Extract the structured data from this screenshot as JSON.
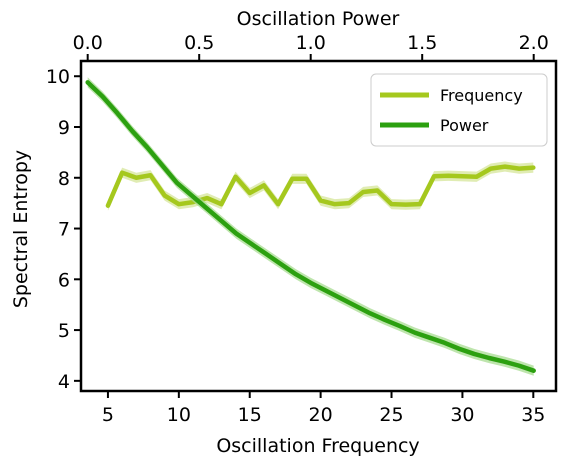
{
  "chart_data": {
    "type": "line",
    "xlabel": "Oscillation Frequency",
    "ylabel": "Spectral Entropy",
    "top_xlabel": "Oscillation Power",
    "xlim": [
      3.1,
      36.6
    ],
    "ylim": [
      3.8,
      10.3
    ],
    "top_xlim": [
      -0.03,
      2.1
    ],
    "x_ticks": [
      5,
      10,
      15,
      20,
      25,
      30,
      35
    ],
    "x_tick_labels": [
      "5",
      "10",
      "15",
      "20",
      "25",
      "30",
      "35"
    ],
    "y_ticks": [
      4,
      5,
      6,
      7,
      8,
      9,
      10
    ],
    "y_tick_labels": [
      "4",
      "5",
      "6",
      "7",
      "8",
      "9",
      "10"
    ],
    "top_ticks": [
      0.0,
      0.5,
      1.0,
      1.5,
      2.0
    ],
    "top_tick_labels": [
      "0.0",
      "0.5",
      "1.0",
      "1.5",
      "2.0"
    ],
    "grid": false,
    "legend_position": "top-right",
    "series": [
      {
        "name": "Frequency",
        "axis": "bottom",
        "color": "#a5c81e",
        "band_color": "#d5e69a",
        "x": [
          5,
          6,
          7,
          8,
          9,
          10,
          11,
          12,
          13,
          14,
          15,
          16,
          17,
          18,
          19,
          20,
          21,
          22,
          23,
          24,
          25,
          26,
          27,
          28,
          29,
          30,
          31,
          32,
          33,
          34,
          35
        ],
        "y": [
          7.45,
          8.1,
          8.0,
          8.05,
          7.65,
          7.48,
          7.52,
          7.6,
          7.48,
          8.02,
          7.7,
          7.85,
          7.48,
          7.98,
          7.98,
          7.55,
          7.48,
          7.5,
          7.72,
          7.75,
          7.48,
          7.47,
          7.48,
          8.03,
          8.04,
          8.03,
          8.02,
          8.18,
          8.22,
          8.18,
          8.2
        ]
      },
      {
        "name": "Power",
        "axis": "top",
        "color": "#2ca010",
        "band_color": "#a8dc92",
        "x": [
          0.0,
          0.0667,
          0.1333,
          0.2,
          0.2667,
          0.3333,
          0.4,
          0.4667,
          0.5333,
          0.6,
          0.6667,
          0.7333,
          0.8,
          0.8667,
          0.9333,
          1.0,
          1.0667,
          1.1333,
          1.2,
          1.2667,
          1.3333,
          1.4,
          1.4667,
          1.5333,
          1.6,
          1.6667,
          1.7333,
          1.8,
          1.8667,
          1.9333,
          2.0
        ],
        "y": [
          9.88,
          9.6,
          9.27,
          8.92,
          8.6,
          8.25,
          7.9,
          7.65,
          7.4,
          7.15,
          6.9,
          6.7,
          6.5,
          6.3,
          6.1,
          5.93,
          5.78,
          5.63,
          5.48,
          5.33,
          5.2,
          5.08,
          4.95,
          4.85,
          4.75,
          4.63,
          4.53,
          4.45,
          4.38,
          4.3,
          4.2
        ]
      }
    ]
  }
}
